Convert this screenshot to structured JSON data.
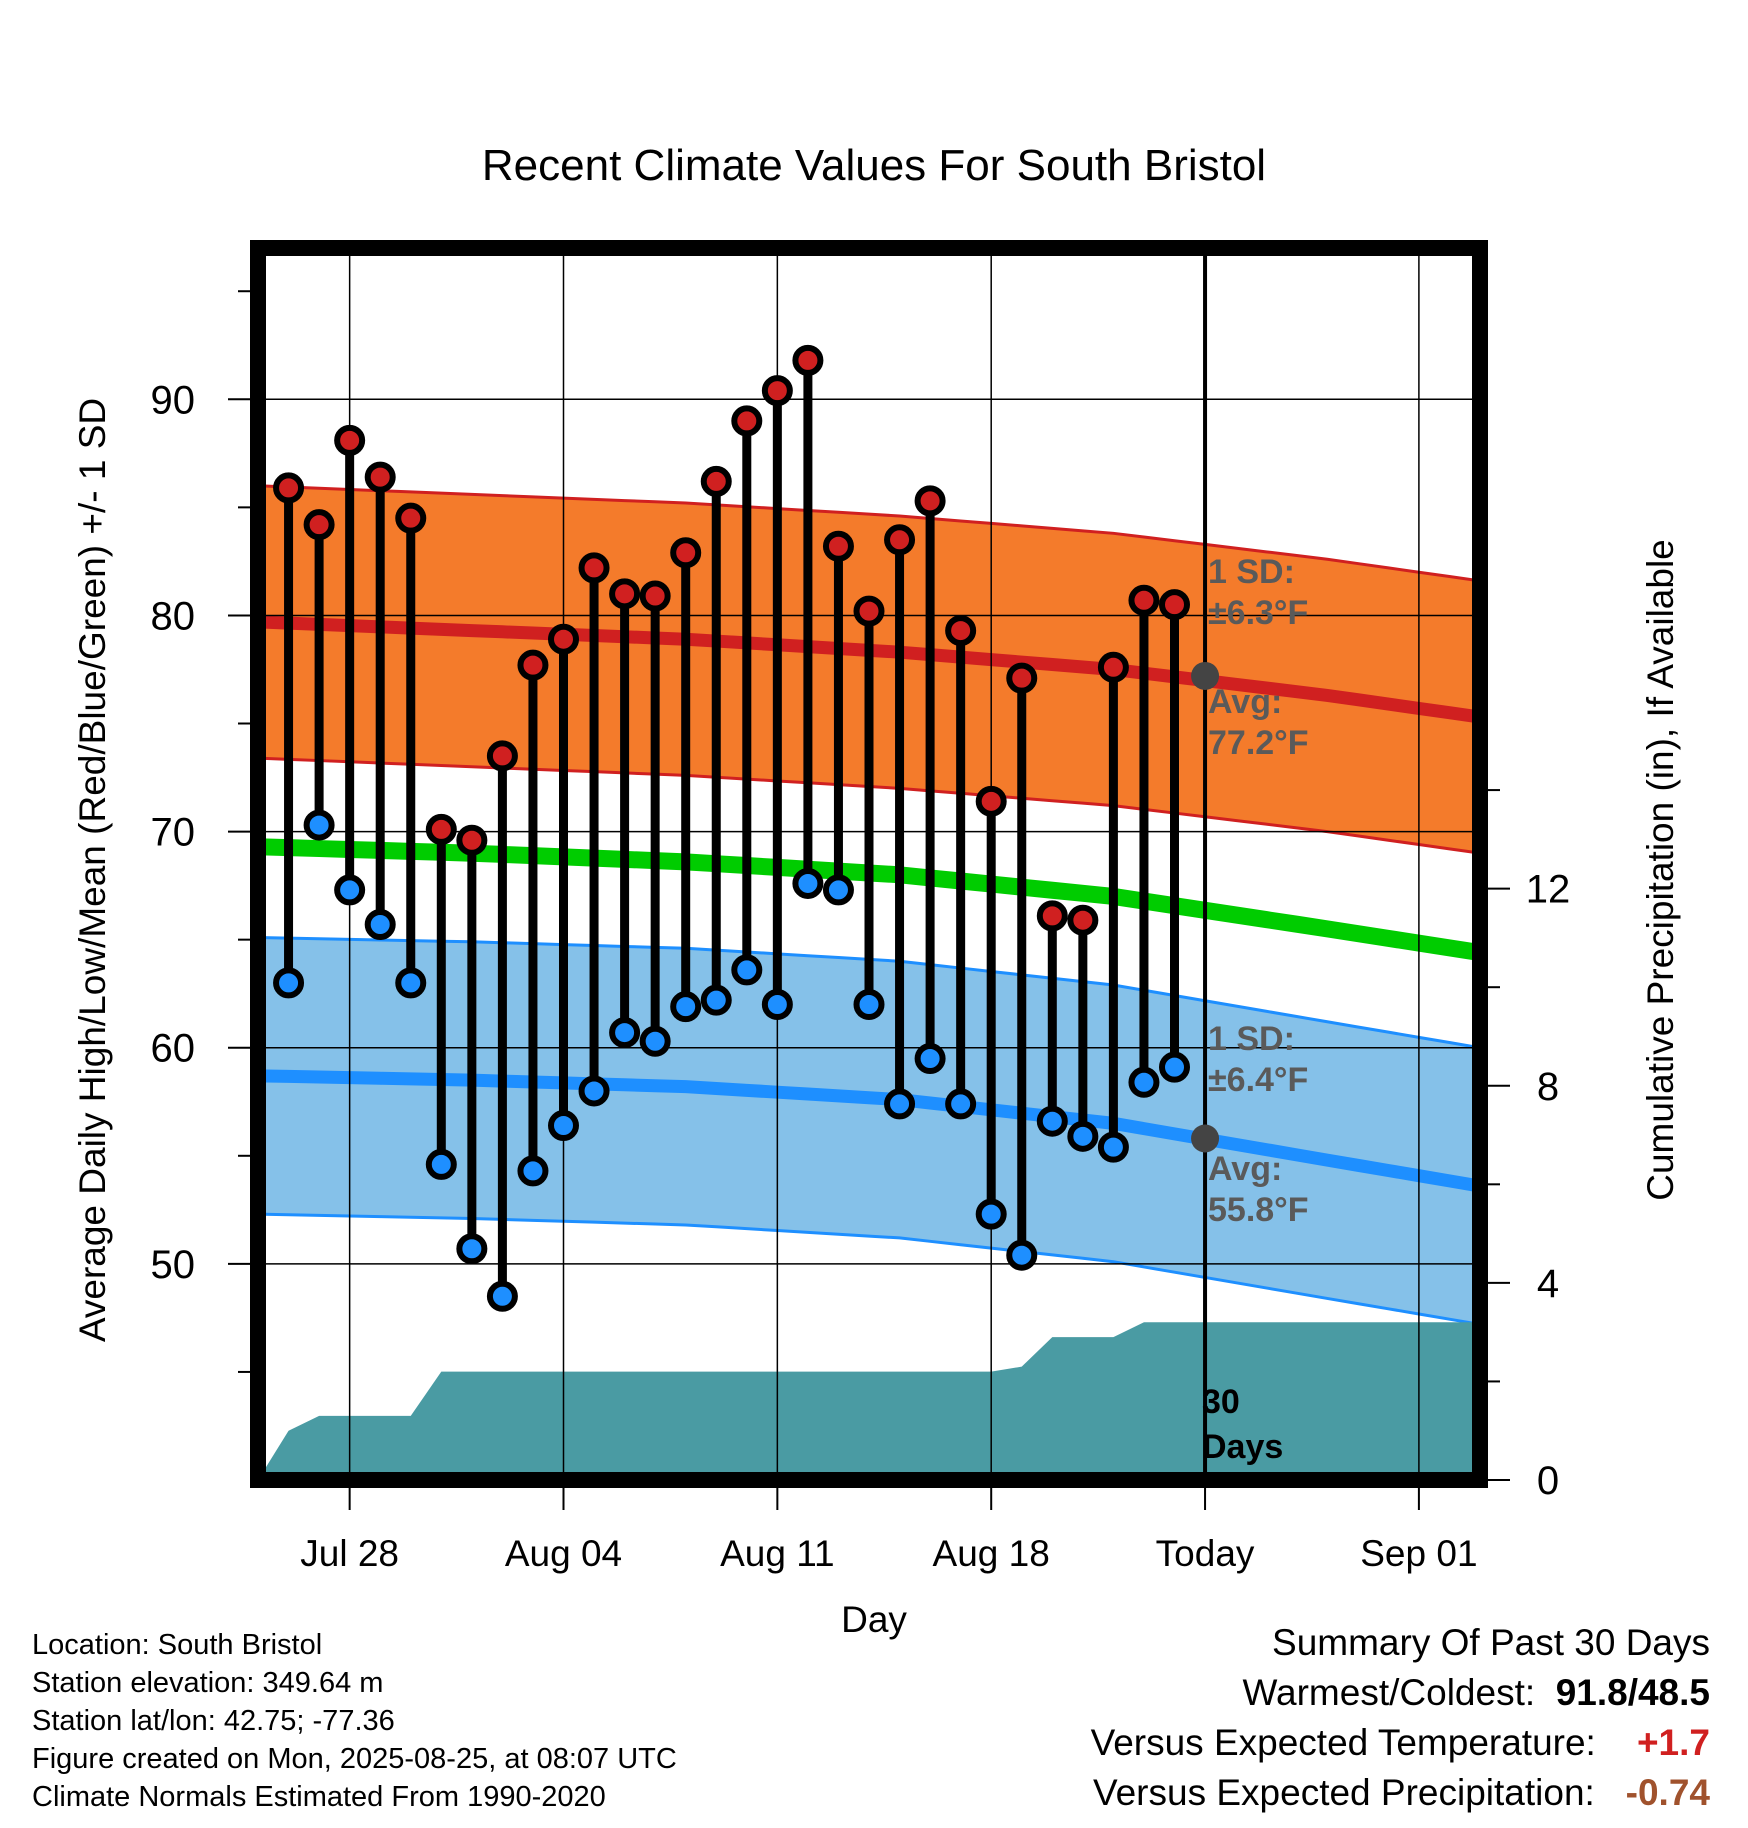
{
  "chart_data": {
    "type": "line",
    "title": "Recent Climate Values For South Bristol",
    "xlabel": "Day",
    "ylabel_left": "Average Daily High/Low/Mean (Red/Blue/Green) +/- 1 SD",
    "ylabel_right": "Cumulative Precipitation (in), If Available",
    "y_left_ticks": [
      "50",
      "60",
      "70",
      "80",
      "90"
    ],
    "y_left_range": [
      40,
      97
    ],
    "y_right_ticks": [
      "0",
      "4",
      "8",
      "12"
    ],
    "y_right_range": [
      0,
      25
    ],
    "x_ticks": [
      "Jul 28",
      "Aug 04",
      "Aug 11",
      "Aug 18",
      "Today",
      "Sep 01"
    ],
    "x_range": [
      "2025-07-25",
      "2025-09-03"
    ],
    "days": [
      "2025-07-26",
      "2025-07-27",
      "2025-07-28",
      "2025-07-29",
      "2025-07-30",
      "2025-07-31",
      "2025-08-01",
      "2025-08-02",
      "2025-08-03",
      "2025-08-04",
      "2025-08-05",
      "2025-08-06",
      "2025-08-07",
      "2025-08-08",
      "2025-08-09",
      "2025-08-10",
      "2025-08-11",
      "2025-08-12",
      "2025-08-13",
      "2025-08-14",
      "2025-08-15",
      "2025-08-16",
      "2025-08-17",
      "2025-08-18",
      "2025-08-19",
      "2025-08-20",
      "2025-08-21",
      "2025-08-22",
      "2025-08-23",
      "2025-08-24"
    ],
    "series": [
      {
        "name": "High",
        "values": [
          85.9,
          84.2,
          88.1,
          86.4,
          84.5,
          70.1,
          69.6,
          73.5,
          77.7,
          78.9,
          82.2,
          81.0,
          80.9,
          82.9,
          86.2,
          89.0,
          90.4,
          91.8,
          83.2,
          80.2,
          83.5,
          85.3,
          79.3,
          71.4,
          77.1,
          66.1,
          65.9,
          77.6,
          80.7,
          80.5
        ],
        "color": "#d02020"
      },
      {
        "name": "Low",
        "values": [
          63.0,
          70.3,
          67.3,
          65.7,
          63.0,
          54.6,
          50.7,
          48.5,
          54.3,
          56.4,
          58.0,
          60.7,
          60.3,
          61.9,
          62.2,
          63.6,
          62.0,
          67.6,
          67.3,
          62.0,
          57.4,
          59.5,
          57.4,
          52.3,
          50.4,
          56.6,
          55.9,
          55.4,
          58.4,
          59.1
        ],
        "color": "#1e8fff"
      }
    ],
    "normals": {
      "x": [
        "2025-07-25",
        "2025-08-01",
        "2025-08-08",
        "2025-08-15",
        "2025-08-22",
        "2025-08-29",
        "2025-09-03"
      ],
      "avg_high": [
        79.7,
        79.3,
        78.9,
        78.3,
        77.5,
        76.3,
        75.3
      ],
      "avg_low": [
        58.7,
        58.5,
        58.2,
        57.6,
        56.5,
        54.8,
        53.6
      ],
      "avg_mean": [
        69.3,
        69.0,
        68.6,
        68.0,
        67.0,
        65.5,
        64.4
      ],
      "high_sd": 6.3,
      "low_sd": 6.4
    },
    "precipitation": {
      "x": [
        "2025-07-25",
        "2025-07-26",
        "2025-07-27",
        "2025-07-28",
        "2025-07-29",
        "2025-07-30",
        "2025-07-31",
        "2025-08-01",
        "2025-08-17",
        "2025-08-18",
        "2025-08-19",
        "2025-08-20",
        "2025-08-21",
        "2025-08-22",
        "2025-08-23",
        "2025-08-24",
        "2025-09-03"
      ],
      "values": [
        0.0,
        1.0,
        1.3,
        1.3,
        1.3,
        1.3,
        2.2,
        2.2,
        2.2,
        2.2,
        2.3,
        2.9,
        2.9,
        2.9,
        3.2,
        3.2,
        3.2
      ],
      "color": "#4a9ba3"
    },
    "annotations": {
      "high_sd": "1 SD:",
      "high_sd_value": "±6.3°F",
      "high_avg": "Avg:",
      "high_avg_value": "77.2°F",
      "low_sd": "1 SD:",
      "low_sd_value": "±6.4°F",
      "low_avg": "Avg:",
      "low_avg_value": "55.8°F",
      "days_label_1": "30",
      "days_label_2": "Days"
    },
    "today_marks": {
      "high": 77.2,
      "low": 55.8
    },
    "grid": true
  },
  "info": {
    "location": "Location: South Bristol",
    "elevation": "Station elevation: 349.64 m",
    "latlon": "Station lat/lon: 42.75; -77.36",
    "created": "Figure created on Mon, 2025-08-25, at 08:07 UTC",
    "normals": "Climate Normals Estimated From 1990-2020"
  },
  "summary": {
    "title": "Summary Of Past 30 Days",
    "warm_cold_label": "Warmest/Coldest:",
    "warm_cold_value": "91.8/48.5",
    "temp_label": "Versus Expected Temperature:",
    "temp_value": "+1.7",
    "precip_label": "Versus Expected Precipitation:",
    "precip_value": "-0.74",
    "colors": {
      "temp": "#d02020",
      "precip": "#a0522d"
    }
  }
}
